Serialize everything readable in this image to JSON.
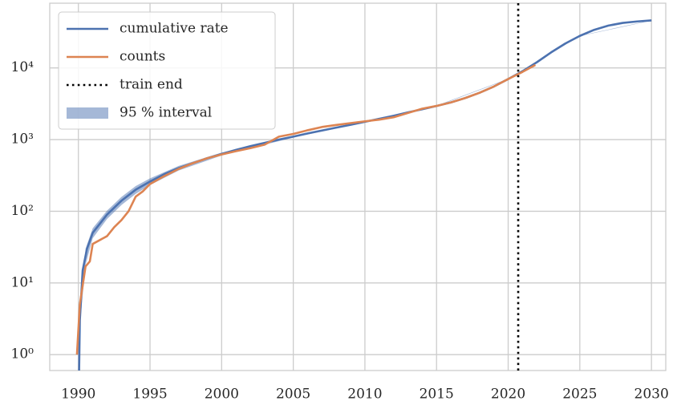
{
  "chart_data": {
    "type": "line",
    "yscale": "log",
    "grid": true,
    "legend": "upper left",
    "xlim": [
      1988,
      2031
    ],
    "xticks": [
      1990,
      1995,
      2000,
      2005,
      2010,
      2015,
      2020,
      2025,
      2030
    ],
    "ylim": [
      0.6,
      80000
    ],
    "yticks": [
      {
        "value": 1,
        "label": "10⁰"
      },
      {
        "value": 10,
        "label": "10¹"
      },
      {
        "value": 100,
        "label": "10²"
      },
      {
        "value": 1000,
        "label": "10³"
      },
      {
        "value": 10000,
        "label": "10⁴"
      }
    ],
    "series": [
      {
        "name": "cumulative rate",
        "color": "#4c72b0",
        "x": [
          1990.05,
          1990.1,
          1990.3,
          1990.6,
          1991,
          1992,
          1993,
          1994,
          1995,
          1996,
          1997,
          1998,
          1999,
          2000,
          2001,
          2002,
          2003,
          2004,
          2005,
          2006,
          2007,
          2008,
          2009,
          2010,
          2011,
          2012,
          2013,
          2014,
          2015,
          2016,
          2017,
          2018,
          2019,
          2020,
          2021,
          2022,
          2023,
          2024,
          2025,
          2026,
          2027,
          2028,
          2029,
          2030
        ],
        "values": [
          0.6,
          3,
          15,
          30,
          50,
          90,
          140,
          200,
          260,
          330,
          400,
          470,
          550,
          630,
          720,
          810,
          900,
          1000,
          1100,
          1220,
          1340,
          1470,
          1610,
          1770,
          1950,
          2150,
          2400,
          2650,
          2950,
          3300,
          3800,
          4500,
          5500,
          7000,
          9000,
          12000,
          16500,
          22000,
          28000,
          34000,
          39000,
          42500,
          44500,
          46000
        ]
      },
      {
        "name": "counts",
        "color": "#dd8452",
        "x": [
          1989.9,
          1990.1,
          1990.5,
          1990.8,
          1991,
          1992,
          1992.5,
          1993,
          1993.5,
          1994,
          1994.5,
          1995,
          1996,
          1997,
          1998,
          1999,
          2000,
          2001,
          2002,
          2003,
          2004,
          2005,
          2006,
          2007,
          2008,
          2009,
          2010,
          2011,
          2012,
          2013,
          2014,
          2015,
          2016,
          2017,
          2018,
          2019,
          2020,
          2021,
          2021.9
        ],
        "values": [
          1,
          5,
          17,
          20,
          35,
          45,
          60,
          75,
          100,
          160,
          190,
          240,
          310,
          390,
          470,
          550,
          620,
          690,
          760,
          850,
          1100,
          1200,
          1350,
          1500,
          1600,
          1700,
          1800,
          1900,
          2050,
          2350,
          2700,
          2950,
          3300,
          3800,
          4500,
          5500,
          7000,
          8800,
          11000
        ]
      }
    ],
    "band": {
      "name": "95 % interval",
      "color": "#4c72b0",
      "x": [
        1990.05,
        1990.1,
        1990.5,
        1991,
        1992,
        1993,
        1994,
        1995,
        1997,
        2000,
        2005,
        2010,
        2015,
        2020,
        2025,
        2030
      ],
      "lower": [
        0.6,
        2.5,
        18,
        42,
        78,
        122,
        175,
        232,
        370,
        600,
        1070,
        1740,
        2920,
        6950,
        27800,
        45700
      ],
      "upper": [
        0.6,
        3.6,
        30,
        58,
        102,
        158,
        225,
        288,
        430,
        660,
        1130,
        1800,
        2980,
        7050,
        28200,
        46300
      ]
    },
    "vlines": [
      {
        "name": "train end",
        "x": 2020.7,
        "color": "#000000"
      }
    ]
  }
}
